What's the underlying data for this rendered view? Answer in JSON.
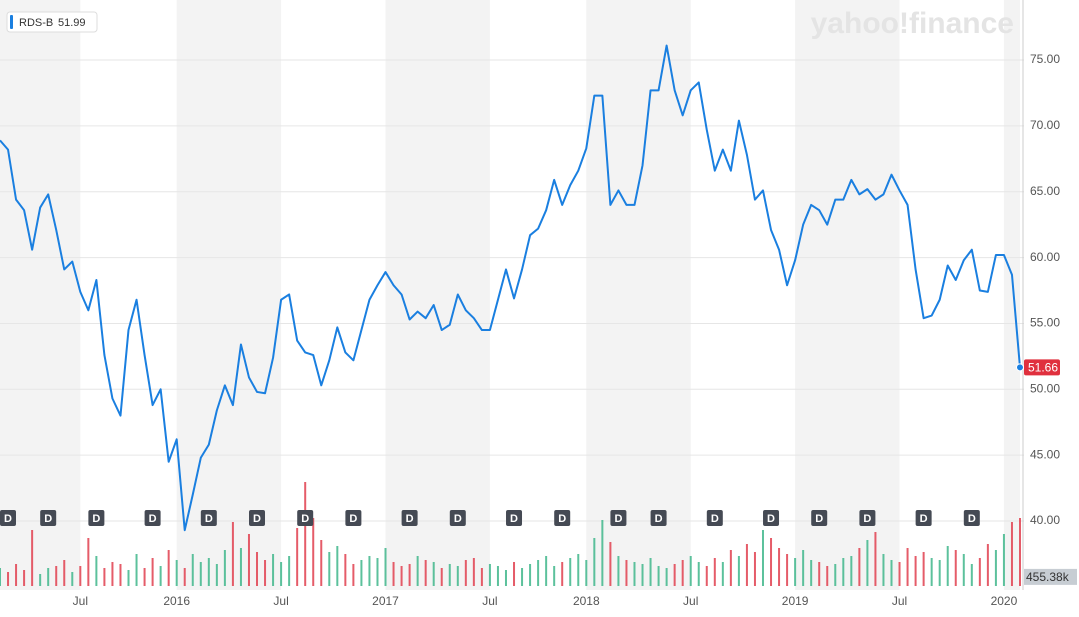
{
  "chart_data": {
    "type": "line",
    "ticker": "RDS-B",
    "legend_value": 51.99,
    "watermark": "yahoo!finance",
    "current_price": 51.66,
    "volume_current": {
      "value": 455.38,
      "label": "455.38k"
    },
    "categories": [
      null,
      null,
      null,
      null,
      null,
      null,
      null,
      null,
      null,
      null,
      "Jul",
      null,
      null,
      null,
      null,
      null,
      null,
      null,
      null,
      null,
      null,
      null,
      "2016",
      null,
      null,
      null,
      null,
      null,
      null,
      null,
      null,
      null,
      null,
      null,
      null,
      "Jul",
      null,
      null,
      null,
      null,
      null,
      null,
      null,
      null,
      null,
      null,
      null,
      null,
      "2017",
      null,
      null,
      null,
      null,
      null,
      null,
      null,
      null,
      null,
      null,
      null,
      null,
      "Jul",
      null,
      null,
      null,
      null,
      null,
      null,
      null,
      null,
      null,
      null,
      null,
      "2018",
      null,
      null,
      null,
      null,
      null,
      null,
      null,
      null,
      null,
      null,
      null,
      null,
      "Jul",
      null,
      null,
      null,
      null,
      null,
      null,
      null,
      null,
      null,
      null,
      null,
      null,
      "2019",
      null,
      null,
      null,
      null,
      null,
      null,
      null,
      null,
      null,
      null,
      null,
      null,
      "Jul",
      null,
      null,
      null,
      null,
      null,
      null,
      null,
      null,
      null,
      null,
      null,
      null,
      "2020",
      null,
      null
    ],
    "series": [
      {
        "name": "RDS-B",
        "color": "#1a7fe0",
        "values": [
          68.9,
          68.2,
          64.4,
          63.6,
          60.6,
          63.8,
          64.8,
          62.1,
          59.1,
          59.7,
          57.4,
          56.0,
          58.3,
          52.6,
          49.3,
          48.0,
          54.5,
          56.8,
          52.6,
          48.8,
          50.0,
          44.5,
          46.2,
          39.3,
          42.0,
          44.8,
          45.8,
          48.4,
          50.3,
          48.8,
          53.4,
          50.9,
          49.8,
          49.7,
          52.4,
          56.8,
          57.2,
          53.7,
          52.8,
          52.6,
          50.3,
          52.2,
          54.7,
          52.8,
          52.2,
          54.5,
          56.8,
          57.9,
          58.9,
          57.9,
          57.2,
          55.3,
          55.9,
          55.4,
          56.4,
          54.5,
          54.9,
          57.2,
          56.0,
          55.4,
          54.5,
          54.5,
          56.8,
          59.1,
          56.9,
          59.1,
          61.7,
          62.2,
          63.6,
          65.9,
          64.0,
          65.5,
          66.6,
          68.3,
          72.3,
          72.3,
          64.0,
          65.1,
          64.0,
          64.0,
          67.0,
          72.7,
          72.7,
          76.1,
          72.7,
          70.8,
          72.7,
          73.3,
          69.7,
          66.6,
          68.2,
          66.6,
          70.4,
          67.8,
          64.4,
          65.1,
          62.1,
          60.6,
          57.9,
          59.8,
          62.5,
          64.0,
          63.6,
          62.5,
          64.4,
          64.4,
          65.9,
          64.8,
          65.2,
          64.4,
          64.8,
          66.3,
          65.1,
          64.0,
          59.1,
          55.4,
          55.6,
          56.8,
          59.4,
          58.3,
          59.8,
          60.6,
          57.5,
          57.4,
          60.2,
          60.2,
          58.7,
          51.66
        ]
      }
    ],
    "volume": {
      "up_color": "#3fb68b",
      "down_color": "#e0404f",
      "vlim": [
        0,
        10000
      ],
      "values": [
        900,
        700,
        1100,
        800,
        2800,
        600,
        900,
        1000,
        1300,
        700,
        1000,
        2400,
        1500,
        900,
        1200,
        1100,
        800,
        1600,
        900,
        1400,
        1000,
        1800,
        1300,
        900,
        1600,
        1200,
        1400,
        1100,
        1800,
        3200,
        1900,
        2600,
        1700,
        1300,
        1600,
        1200,
        1500,
        2900,
        5200,
        3400,
        2300,
        1700,
        2000,
        1600,
        1100,
        1300,
        1500,
        1400,
        1900,
        1200,
        1000,
        1100,
        1500,
        1300,
        1200,
        900,
        1100,
        1000,
        1300,
        1400,
        900,
        1100,
        1000,
        800,
        1200,
        900,
        1100,
        1300,
        1500,
        1000,
        1200,
        1400,
        1600,
        1300,
        2400,
        3300,
        2200,
        1500,
        1300,
        1200,
        1100,
        1400,
        1000,
        900,
        1100,
        1300,
        1500,
        1200,
        1000,
        1400,
        1200,
        1800,
        1500,
        2100,
        1700,
        2800,
        2400,
        1900,
        1600,
        1400,
        1800,
        1300,
        1200,
        1000,
        1100,
        1400,
        1500,
        1900,
        2300,
        2700,
        1600,
        1300,
        1200,
        1900,
        1500,
        1700,
        1400,
        1300,
        2000,
        1800,
        1600,
        1100,
        1400,
        2100,
        1800,
        2600,
        3200,
        3400
      ]
    },
    "dividends": [
      {
        "index": 0,
        "label": "D"
      },
      {
        "index": 6,
        "label": "D"
      },
      {
        "index": 12,
        "label": "D"
      },
      {
        "index": 19,
        "label": "D"
      },
      {
        "index": 26,
        "label": "D"
      },
      {
        "index": 32,
        "label": "D"
      },
      {
        "index": 38,
        "label": "D"
      },
      {
        "index": 44,
        "label": "D"
      },
      {
        "index": 51,
        "label": "D"
      },
      {
        "index": 57,
        "label": "D"
      },
      {
        "index": 64,
        "label": "D"
      },
      {
        "index": 70,
        "label": "D"
      },
      {
        "index": 77,
        "label": "D"
      },
      {
        "index": 82,
        "label": "D"
      },
      {
        "index": 89,
        "label": "D"
      },
      {
        "index": 96,
        "label": "D"
      },
      {
        "index": 102,
        "label": "D"
      },
      {
        "index": 108,
        "label": "D"
      },
      {
        "index": 115,
        "label": "D"
      },
      {
        "index": 121,
        "label": "D"
      }
    ],
    "ylim": [
      34.76,
      79.56
    ],
    "yticks": [
      {
        "value": 40,
        "label": "40.00"
      },
      {
        "value": 45,
        "label": "45.00"
      },
      {
        "value": 50,
        "label": "50.00"
      },
      {
        "value": 55,
        "label": "55.00"
      },
      {
        "value": 60,
        "label": "60.00"
      },
      {
        "value": 65,
        "label": "65.00"
      },
      {
        "value": 70,
        "label": "70.00"
      },
      {
        "value": 75,
        "label": "75.00"
      }
    ],
    "grid": true
  }
}
